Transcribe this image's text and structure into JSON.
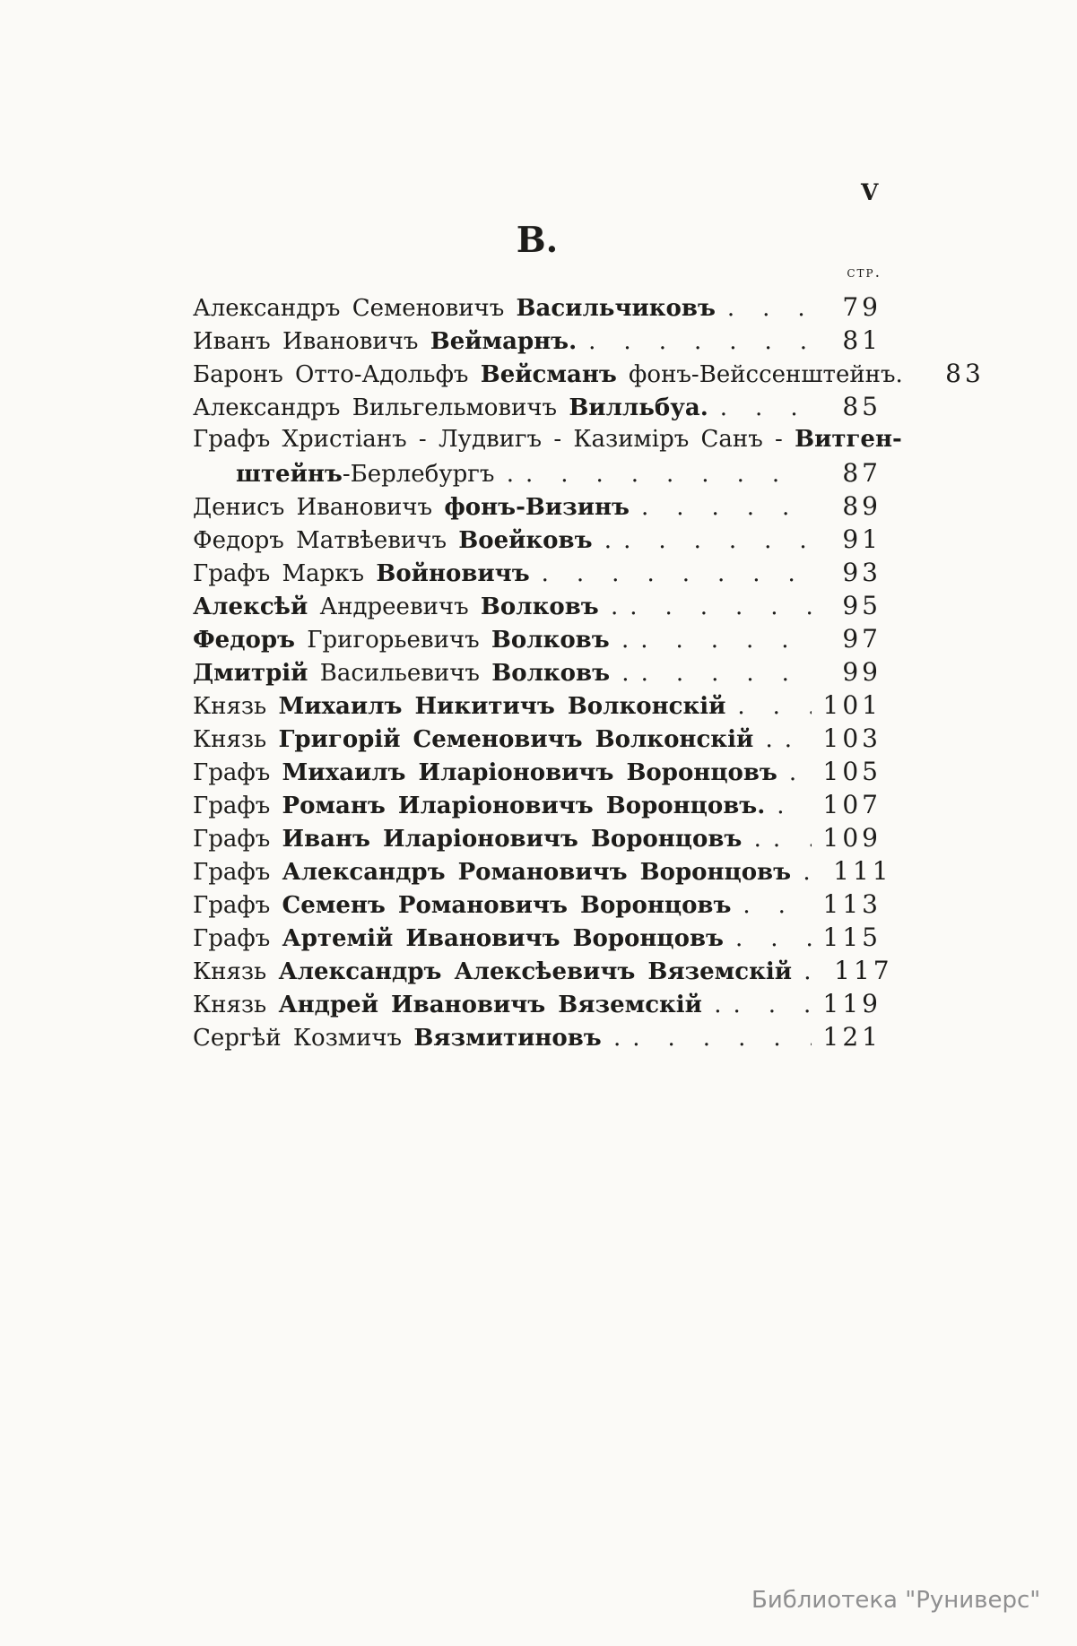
{
  "page": {
    "folio": "V",
    "section_letter": "В.",
    "column_header": "стр.",
    "watermark": "Библиотека \"Руниверс\""
  },
  "toc": {
    "lines": [
      {
        "segments": [
          {
            "t": "Александръ Семеновичъ ",
            "b": false
          },
          {
            "t": "Васильчиковъ",
            "b": true
          }
        ],
        "dots": 5,
        "page": "79",
        "indent": false
      },
      {
        "segments": [
          {
            "t": "Иванъ Ивановичъ ",
            "b": false
          },
          {
            "t": "Веймарнъ.",
            "b": true
          }
        ],
        "dots": 8,
        "page": "81",
        "indent": false
      },
      {
        "segments": [
          {
            "t": "Баронъ Отто-Адольфъ ",
            "b": false
          },
          {
            "t": "Вейсманъ",
            "b": true
          },
          {
            "t": " фонъ-Вейссенштейнъ.",
            "b": false
          }
        ],
        "dots": 0,
        "page": "83",
        "indent": false
      },
      {
        "segments": [
          {
            "t": "Александръ Вильгельмовичъ ",
            "b": false
          },
          {
            "t": "Вилльбуа.",
            "b": true
          }
        ],
        "dots": 6,
        "page": "85",
        "indent": false
      },
      {
        "segments": [
          {
            "t": "Графъ Христіанъ - Лудвигъ - Казиміръ Санъ - ",
            "b": false
          },
          {
            "t": "Витген-",
            "b": true
          }
        ],
        "dots": 0,
        "page": "",
        "indent": false
      },
      {
        "segments": [
          {
            "t": "штейнъ",
            "b": true
          },
          {
            "t": "-Берлебургъ .",
            "b": false
          }
        ],
        "dots": 8,
        "page": "87",
        "indent": true
      },
      {
        "segments": [
          {
            "t": "Денисъ Ивановичъ ",
            "b": false
          },
          {
            "t": "фонъ-Визинъ",
            "b": true
          }
        ],
        "dots": 7,
        "page": "89",
        "indent": false
      },
      {
        "segments": [
          {
            "t": "Федоръ Матвѣевичъ ",
            "b": false
          },
          {
            "t": "Воейковъ",
            "b": true
          },
          {
            "t": " .",
            "b": false
          }
        ],
        "dots": 7,
        "page": "91",
        "indent": false
      },
      {
        "segments": [
          {
            "t": "Графъ Маркъ ",
            "b": false
          },
          {
            "t": "Войновичъ",
            "b": true
          }
        ],
        "dots": 8,
        "page": "93",
        "indent": false
      },
      {
        "segments": [
          {
            "t": "Алексѣй",
            "b": true
          },
          {
            "t": " Андреевичъ ",
            "b": false
          },
          {
            "t": "Волковъ",
            "b": true
          },
          {
            "t": " .",
            "b": false
          }
        ],
        "dots": 7,
        "page": "95",
        "indent": false
      },
      {
        "segments": [
          {
            "t": "Федоръ",
            "b": true
          },
          {
            "t": " Григорьевичъ ",
            "b": false
          },
          {
            "t": "Волковъ",
            "b": true
          },
          {
            "t": " .",
            "b": false
          }
        ],
        "dots": 7,
        "page": "97",
        "indent": false
      },
      {
        "segments": [
          {
            "t": "Дмитрій",
            "b": true
          },
          {
            "t": " Васильевичъ ",
            "b": false
          },
          {
            "t": "Волковъ",
            "b": true
          },
          {
            "t": " .",
            "b": false
          }
        ],
        "dots": 7,
        "page": "99",
        "indent": false
      },
      {
        "segments": [
          {
            "t": "Князь ",
            "b": false
          },
          {
            "t": "Михаилъ Никитичъ Волконскій",
            "b": true
          }
        ],
        "dots": 5,
        "page": "101",
        "indent": false
      },
      {
        "segments": [
          {
            "t": "Князь ",
            "b": false
          },
          {
            "t": "Григорій Семеновичъ Волконскій",
            "b": true
          },
          {
            "t": " .",
            "b": false
          }
        ],
        "dots": 4,
        "page": "103",
        "indent": false
      },
      {
        "segments": [
          {
            "t": "Графъ ",
            "b": false
          },
          {
            "t": "Михаилъ Иларіоновичъ Воронцовъ",
            "b": true
          }
        ],
        "dots": 4,
        "page": "105",
        "indent": false
      },
      {
        "segments": [
          {
            "t": "Графъ ",
            "b": false
          },
          {
            "t": "Романъ Иларіоновичъ Воронцовъ.",
            "b": true
          }
        ],
        "dots": 5,
        "page": "107",
        "indent": false
      },
      {
        "segments": [
          {
            "t": "Графъ ",
            "b": false
          },
          {
            "t": "Иванъ Иларіоновичъ Воронцовъ",
            "b": true
          },
          {
            "t": " .",
            "b": false
          }
        ],
        "dots": 5,
        "page": "109",
        "indent": false
      },
      {
        "segments": [
          {
            "t": "Графъ ",
            "b": false
          },
          {
            "t": "Александръ Романовичъ Воронцовъ",
            "b": true
          },
          {
            "t": " .",
            "b": false
          }
        ],
        "dots": 4,
        "page": "111",
        "indent": false
      },
      {
        "segments": [
          {
            "t": "Графъ ",
            "b": false
          },
          {
            "t": "Семенъ Романовичъ Воронцовъ",
            "b": true
          }
        ],
        "dots": 5,
        "page": "113",
        "indent": false
      },
      {
        "segments": [
          {
            "t": "Графъ ",
            "b": false
          },
          {
            "t": "Артемій Ивановичъ Воронцовъ",
            "b": true
          }
        ],
        "dots": 5,
        "page": "115",
        "indent": false
      },
      {
        "segments": [
          {
            "t": "Князь ",
            "b": false
          },
          {
            "t": "Александръ Алексѣевичъ Вяземскій",
            "b": true
          },
          {
            "t": " .",
            "b": false
          }
        ],
        "dots": 4,
        "page": "117",
        "indent": false
      },
      {
        "segments": [
          {
            "t": "Князь ",
            "b": false
          },
          {
            "t": "Андрей Ивановичъ Вяземскій",
            "b": true
          },
          {
            "t": " .",
            "b": false
          }
        ],
        "dots": 5,
        "page": "119",
        "indent": false
      },
      {
        "segments": [
          {
            "t": "Сергѣй Козмичъ ",
            "b": false
          },
          {
            "t": "Вязмитиновъ",
            "b": true
          },
          {
            "t": " .",
            "b": false
          }
        ],
        "dots": 7,
        "page": "121",
        "indent": false
      }
    ]
  }
}
